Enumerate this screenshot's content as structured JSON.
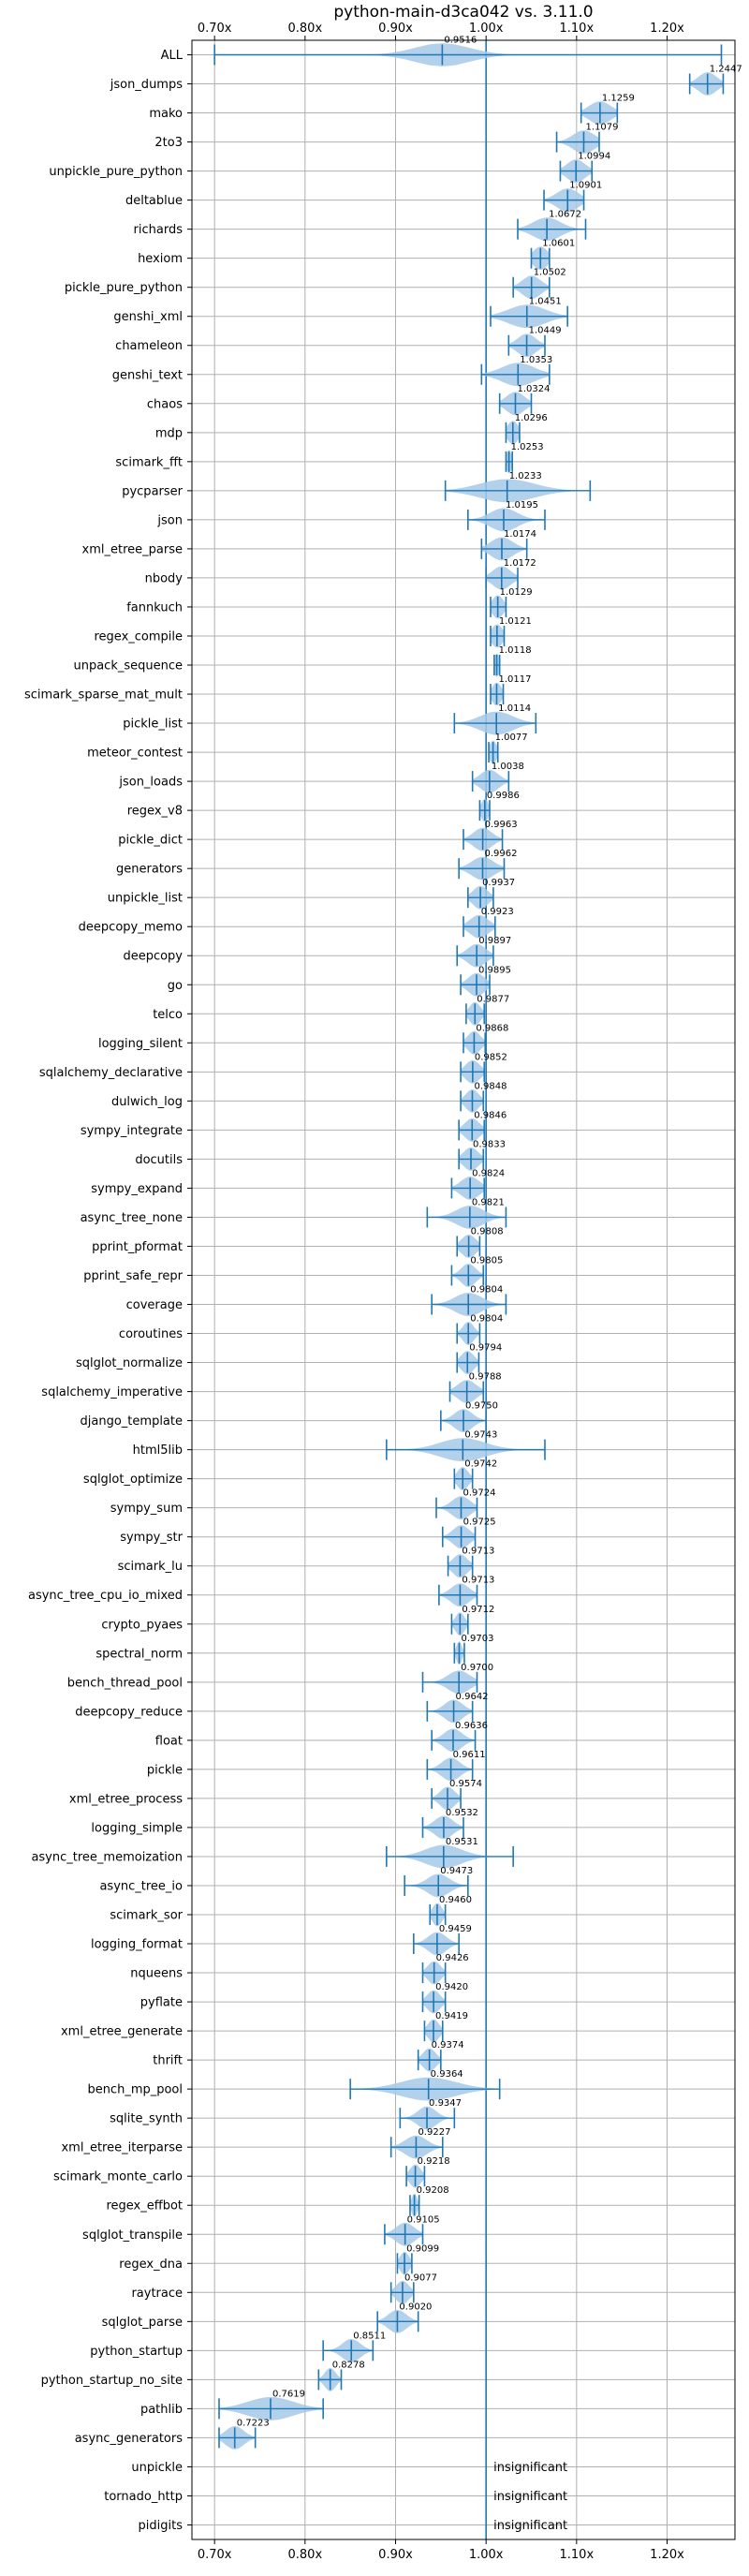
{
  "chart_data": {
    "type": "violin",
    "title": "python-main-d3ca042 vs. 3.11.0",
    "xlabel": "",
    "ylabel": "",
    "xlim": [
      0.675,
      1.275
    ],
    "x_ticks": [
      0.7,
      0.8,
      0.9,
      1.0,
      1.1,
      1.2
    ],
    "x_tick_labels": [
      "0.70x",
      "0.80x",
      "0.90x",
      "1.00x",
      "1.10x",
      "1.20x"
    ],
    "x_tick_positions": [
      "top",
      "bottom"
    ],
    "grid": true,
    "reference_line": 1.0,
    "colors": {
      "violin": "#a7c9e7",
      "whisker": "#1f77b4",
      "reference": "#1f77b4"
    },
    "benchmarks": [
      {
        "name": "ALL",
        "median": 0.9516,
        "label": "0.9516",
        "min": 0.7,
        "max": 1.26,
        "spread": 0.03
      },
      {
        "name": "json_dumps",
        "median": 1.2447,
        "label": "1.2447",
        "min": 1.225,
        "max": 1.262,
        "spread": 0.01
      },
      {
        "name": "mako",
        "median": 1.1259,
        "label": "1.1259",
        "min": 1.105,
        "max": 1.145,
        "spread": 0.012
      },
      {
        "name": "2to3",
        "median": 1.1079,
        "label": "1.1079",
        "min": 1.078,
        "max": 1.125,
        "spread": 0.012
      },
      {
        "name": "unpickle_pure_python",
        "median": 1.0994,
        "label": "1.0994",
        "min": 1.082,
        "max": 1.117,
        "spread": 0.01
      },
      {
        "name": "deltablue",
        "median": 1.0901,
        "label": "1.0901",
        "min": 1.064,
        "max": 1.108,
        "spread": 0.012
      },
      {
        "name": "richards",
        "median": 1.0672,
        "label": "1.0672",
        "min": 1.035,
        "max": 1.11,
        "spread": 0.015
      },
      {
        "name": "hexiom",
        "median": 1.0601,
        "label": "1.0601",
        "min": 1.05,
        "max": 1.07,
        "spread": 0.008
      },
      {
        "name": "pickle_pure_python",
        "median": 1.0502,
        "label": "1.0502",
        "min": 1.03,
        "max": 1.07,
        "spread": 0.01
      },
      {
        "name": "genshi_xml",
        "median": 1.0451,
        "label": "1.0451",
        "min": 1.005,
        "max": 1.09,
        "spread": 0.02
      },
      {
        "name": "chameleon",
        "median": 1.0449,
        "label": "1.0449",
        "min": 1.025,
        "max": 1.065,
        "spread": 0.01
      },
      {
        "name": "genshi_text",
        "median": 1.0353,
        "label": "1.0353",
        "min": 0.995,
        "max": 1.07,
        "spread": 0.018
      },
      {
        "name": "chaos",
        "median": 1.0324,
        "label": "1.0324",
        "min": 1.015,
        "max": 1.05,
        "spread": 0.01
      },
      {
        "name": "mdp",
        "median": 1.0296,
        "label": "1.0296",
        "min": 1.022,
        "max": 1.037,
        "spread": 0.006
      },
      {
        "name": "scimark_fft",
        "median": 1.0253,
        "label": "1.0253",
        "min": 1.022,
        "max": 1.029,
        "spread": 0.003
      },
      {
        "name": "pycparser",
        "median": 1.0233,
        "label": "1.0233",
        "min": 0.955,
        "max": 1.115,
        "spread": 0.03
      },
      {
        "name": "json",
        "median": 1.0195,
        "label": "1.0195",
        "min": 0.98,
        "max": 1.065,
        "spread": 0.015
      },
      {
        "name": "xml_etree_parse",
        "median": 1.0174,
        "label": "1.0174",
        "min": 0.995,
        "max": 1.045,
        "spread": 0.012
      },
      {
        "name": "nbody",
        "median": 1.0172,
        "label": "1.0172",
        "min": 1.0,
        "max": 1.035,
        "spread": 0.01
      },
      {
        "name": "fannkuch",
        "median": 1.0129,
        "label": "1.0129",
        "min": 1.005,
        "max": 1.022,
        "spread": 0.006
      },
      {
        "name": "regex_compile",
        "median": 1.0121,
        "label": "1.0121",
        "min": 1.005,
        "max": 1.02,
        "spread": 0.006
      },
      {
        "name": "unpack_sequence",
        "median": 1.0118,
        "label": "1.0118",
        "min": 1.009,
        "max": 1.015,
        "spread": 0.003
      },
      {
        "name": "scimark_sparse_mat_mult",
        "median": 1.0117,
        "label": "1.0117",
        "min": 1.005,
        "max": 1.019,
        "spread": 0.005
      },
      {
        "name": "pickle_list",
        "median": 1.0114,
        "label": "1.0114",
        "min": 0.965,
        "max": 1.055,
        "spread": 0.018
      },
      {
        "name": "meteor_contest",
        "median": 1.0077,
        "label": "1.0077",
        "min": 1.003,
        "max": 1.013,
        "spread": 0.004
      },
      {
        "name": "json_loads",
        "median": 1.0038,
        "label": "1.0038",
        "min": 0.985,
        "max": 1.025,
        "spread": 0.01
      },
      {
        "name": "regex_v8",
        "median": 0.9986,
        "label": "0.9986",
        "min": 0.993,
        "max": 1.004,
        "spread": 0.004
      },
      {
        "name": "pickle_dict",
        "median": 0.9963,
        "label": "0.9963",
        "min": 0.975,
        "max": 1.018,
        "spread": 0.01
      },
      {
        "name": "generators",
        "median": 0.9962,
        "label": "0.9962",
        "min": 0.97,
        "max": 1.02,
        "spread": 0.012
      },
      {
        "name": "unpickle_list",
        "median": 0.9937,
        "label": "0.9937",
        "min": 0.98,
        "max": 1.008,
        "spread": 0.008
      },
      {
        "name": "deepcopy_memo",
        "median": 0.9923,
        "label": "0.9923",
        "min": 0.975,
        "max": 1.01,
        "spread": 0.01
      },
      {
        "name": "deepcopy",
        "median": 0.9897,
        "label": "0.9897",
        "min": 0.968,
        "max": 1.008,
        "spread": 0.01
      },
      {
        "name": "go",
        "median": 0.9895,
        "label": "0.9895",
        "min": 0.972,
        "max": 1.004,
        "spread": 0.009
      },
      {
        "name": "telco",
        "median": 0.9877,
        "label": "0.9877",
        "min": 0.978,
        "max": 0.998,
        "spread": 0.006
      },
      {
        "name": "logging_silent",
        "median": 0.9868,
        "label": "0.9868",
        "min": 0.975,
        "max": 0.999,
        "spread": 0.007
      },
      {
        "name": "sqlalchemy_declarative",
        "median": 0.9852,
        "label": "0.9852",
        "min": 0.972,
        "max": 0.998,
        "spread": 0.008
      },
      {
        "name": "dulwich_log",
        "median": 0.9848,
        "label": "0.9848",
        "min": 0.972,
        "max": 0.997,
        "spread": 0.007
      },
      {
        "name": "sympy_integrate",
        "median": 0.9846,
        "label": "0.9846",
        "min": 0.97,
        "max": 0.998,
        "spread": 0.008
      },
      {
        "name": "docutils",
        "median": 0.9833,
        "label": "0.9833",
        "min": 0.97,
        "max": 0.997,
        "spread": 0.008
      },
      {
        "name": "sympy_expand",
        "median": 0.9824,
        "label": "0.9824",
        "min": 0.962,
        "max": 0.998,
        "spread": 0.01
      },
      {
        "name": "async_tree_none",
        "median": 0.9821,
        "label": "0.9821",
        "min": 0.935,
        "max": 1.022,
        "spread": 0.015
      },
      {
        "name": "pprint_pformat",
        "median": 0.9808,
        "label": "0.9808",
        "min": 0.968,
        "max": 0.993,
        "spread": 0.008
      },
      {
        "name": "pprint_safe_repr",
        "median": 0.9805,
        "label": "0.9805",
        "min": 0.962,
        "max": 0.997,
        "spread": 0.008
      },
      {
        "name": "coverage",
        "median": 0.9804,
        "label": "0.9804",
        "min": 0.94,
        "max": 1.022,
        "spread": 0.015
      },
      {
        "name": "coroutines",
        "median": 0.9804,
        "label": "0.9804",
        "min": 0.968,
        "max": 0.993,
        "spread": 0.006
      },
      {
        "name": "sqlglot_normalize",
        "median": 0.9794,
        "label": "0.9794",
        "min": 0.968,
        "max": 0.992,
        "spread": 0.007
      },
      {
        "name": "sqlalchemy_imperative",
        "median": 0.9788,
        "label": "0.9788",
        "min": 0.96,
        "max": 0.997,
        "spread": 0.01
      },
      {
        "name": "django_template",
        "median": 0.975,
        "label": "0.9750",
        "min": 0.95,
        "max": 1.0,
        "spread": 0.01
      },
      {
        "name": "html5lib",
        "median": 0.9743,
        "label": "0.9743",
        "min": 0.89,
        "max": 1.065,
        "spread": 0.025
      },
      {
        "name": "sqlglot_optimize",
        "median": 0.9742,
        "label": "0.9742",
        "min": 0.965,
        "max": 0.985,
        "spread": 0.006
      },
      {
        "name": "sympy_sum",
        "median": 0.9724,
        "label": "0.9724",
        "min": 0.945,
        "max": 0.99,
        "spread": 0.01
      },
      {
        "name": "sympy_str",
        "median": 0.9725,
        "label": "0.9725",
        "min": 0.952,
        "max": 0.988,
        "spread": 0.009
      },
      {
        "name": "scimark_lu",
        "median": 0.9713,
        "label": "0.9713",
        "min": 0.958,
        "max": 0.985,
        "spread": 0.008
      },
      {
        "name": "async_tree_cpu_io_mixed",
        "median": 0.9713,
        "label": "0.9713",
        "min": 0.948,
        "max": 0.99,
        "spread": 0.01
      },
      {
        "name": "crypto_pyaes",
        "median": 0.9712,
        "label": "0.9712",
        "min": 0.962,
        "max": 0.98,
        "spread": 0.005
      },
      {
        "name": "spectral_norm",
        "median": 0.9703,
        "label": "0.9703",
        "min": 0.965,
        "max": 0.976,
        "spread": 0.003
      },
      {
        "name": "bench_thread_pool",
        "median": 0.97,
        "label": "0.9700",
        "min": 0.93,
        "max": 0.99,
        "spread": 0.012
      },
      {
        "name": "deepcopy_reduce",
        "median": 0.9642,
        "label": "0.9642",
        "min": 0.935,
        "max": 0.985,
        "spread": 0.01
      },
      {
        "name": "float",
        "median": 0.9636,
        "label": "0.9636",
        "min": 0.94,
        "max": 0.988,
        "spread": 0.01
      },
      {
        "name": "pickle",
        "median": 0.9611,
        "label": "0.9611",
        "min": 0.935,
        "max": 0.985,
        "spread": 0.01
      },
      {
        "name": "xml_etree_process",
        "median": 0.9574,
        "label": "0.9574",
        "min": 0.94,
        "max": 0.972,
        "spread": 0.008
      },
      {
        "name": "logging_simple",
        "median": 0.9532,
        "label": "0.9532",
        "min": 0.93,
        "max": 0.975,
        "spread": 0.01
      },
      {
        "name": "async_tree_memoization",
        "median": 0.9531,
        "label": "0.9531",
        "min": 0.89,
        "max": 1.03,
        "spread": 0.02
      },
      {
        "name": "async_tree_io",
        "median": 0.9473,
        "label": "0.9473",
        "min": 0.91,
        "max": 0.98,
        "spread": 0.012
      },
      {
        "name": "scimark_sor",
        "median": 0.946,
        "label": "0.9460",
        "min": 0.938,
        "max": 0.955,
        "spread": 0.005
      },
      {
        "name": "logging_format",
        "median": 0.9459,
        "label": "0.9459",
        "min": 0.92,
        "max": 0.97,
        "spread": 0.01
      },
      {
        "name": "nqueens",
        "median": 0.9426,
        "label": "0.9426",
        "min": 0.93,
        "max": 0.955,
        "spread": 0.007
      },
      {
        "name": "pyflate",
        "median": 0.942,
        "label": "0.9420",
        "min": 0.93,
        "max": 0.955,
        "spread": 0.007
      },
      {
        "name": "xml_etree_generate",
        "median": 0.9419,
        "label": "0.9419",
        "min": 0.932,
        "max": 0.952,
        "spread": 0.006
      },
      {
        "name": "thrift",
        "median": 0.9374,
        "label": "0.9374",
        "min": 0.925,
        "max": 0.95,
        "spread": 0.007
      },
      {
        "name": "bench_mp_pool",
        "median": 0.9364,
        "label": "0.9364",
        "min": 0.85,
        "max": 1.015,
        "spread": 0.03
      },
      {
        "name": "sqlite_synth",
        "median": 0.9347,
        "label": "0.9347",
        "min": 0.905,
        "max": 0.965,
        "spread": 0.01
      },
      {
        "name": "xml_etree_iterparse",
        "median": 0.9227,
        "label": "0.9227",
        "min": 0.895,
        "max": 0.952,
        "spread": 0.012
      },
      {
        "name": "scimark_monte_carlo",
        "median": 0.9218,
        "label": "0.9218",
        "min": 0.912,
        "max": 0.932,
        "spread": 0.006
      },
      {
        "name": "regex_effbot",
        "median": 0.9208,
        "label": "0.9208",
        "min": 0.916,
        "max": 0.926,
        "spread": 0.003
      },
      {
        "name": "sqlglot_transpile",
        "median": 0.9105,
        "label": "0.9105",
        "min": 0.888,
        "max": 0.93,
        "spread": 0.01
      },
      {
        "name": "regex_dna",
        "median": 0.9099,
        "label": "0.9099",
        "min": 0.902,
        "max": 0.918,
        "spread": 0.005
      },
      {
        "name": "raytrace",
        "median": 0.9077,
        "label": "0.9077",
        "min": 0.895,
        "max": 0.92,
        "spread": 0.007
      },
      {
        "name": "sqlglot_parse",
        "median": 0.902,
        "label": "0.9020",
        "min": 0.88,
        "max": 0.925,
        "spread": 0.01
      },
      {
        "name": "python_startup",
        "median": 0.8511,
        "label": "0.8511",
        "min": 0.82,
        "max": 0.875,
        "spread": 0.01
      },
      {
        "name": "python_startup_no_site",
        "median": 0.8278,
        "label": "0.8278",
        "min": 0.815,
        "max": 0.84,
        "spread": 0.006
      },
      {
        "name": "pathlib",
        "median": 0.7619,
        "label": "0.7619",
        "min": 0.705,
        "max": 0.82,
        "spread": 0.025
      },
      {
        "name": "async_generators",
        "median": 0.7223,
        "label": "0.7223",
        "min": 0.705,
        "max": 0.745,
        "spread": 0.01
      },
      {
        "name": "unpickle",
        "insignificant": true,
        "label": "insignificant"
      },
      {
        "name": "tornado_http",
        "insignificant": true,
        "label": "insignificant"
      },
      {
        "name": "pidigits",
        "insignificant": true,
        "label": "insignificant"
      }
    ]
  }
}
